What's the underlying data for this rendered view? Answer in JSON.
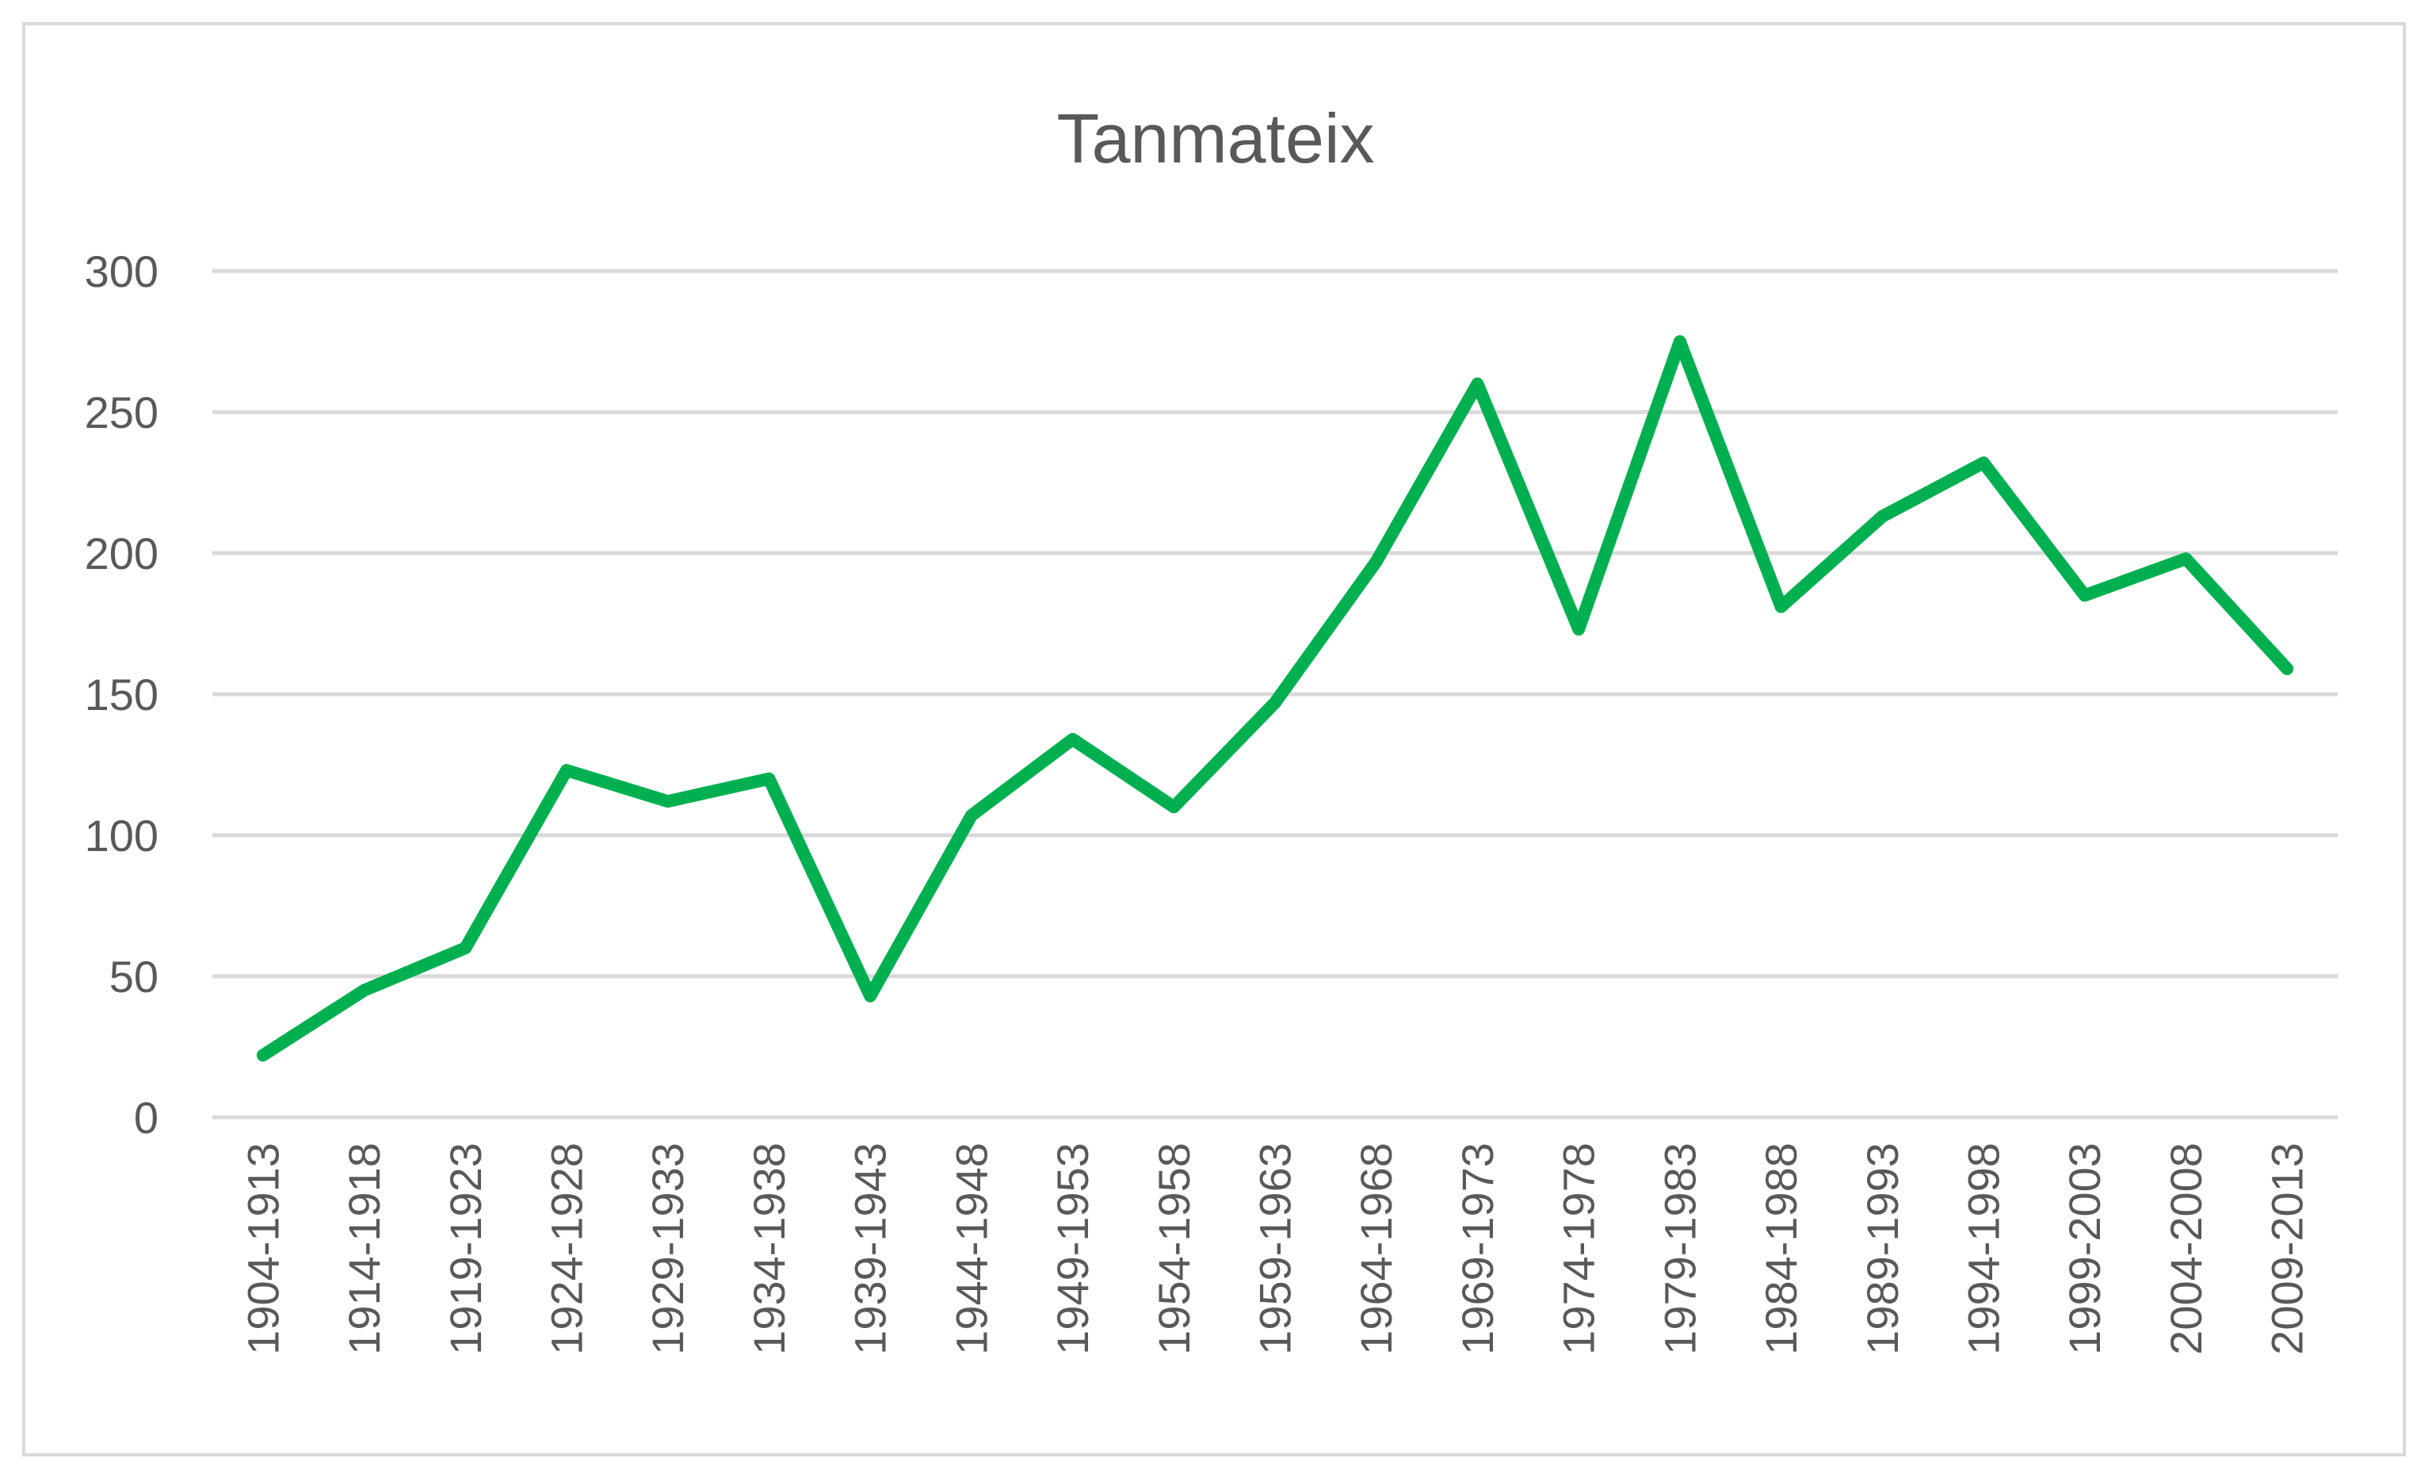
{
  "chart_data": {
    "type": "line",
    "title": "Tanmateix",
    "xlabel": "",
    "ylabel": "",
    "ylim": [
      0,
      300
    ],
    "yticks": [
      0,
      50,
      100,
      150,
      200,
      250,
      300
    ],
    "grid": true,
    "legend": "none",
    "categories": [
      "1904-1913",
      "1914-1918",
      "1919-1923",
      "1924-1928",
      "1929-1933",
      "1934-1938",
      "1939-1943",
      "1944-1948",
      "1949-1953",
      "1954-1958",
      "1959-1963",
      "1964-1968",
      "1969-1973",
      "1974-1978",
      "1979-1983",
      "1984-1988",
      "1989-1993",
      "1994-1998",
      "1999-2003",
      "2004-2008",
      "2009-2013"
    ],
    "series": [
      {
        "color": "#00b050",
        "values": [
          22,
          45,
          60,
          123,
          112,
          120,
          43,
          107,
          134,
          110,
          147,
          197,
          260,
          173,
          275,
          181,
          213,
          232,
          185,
          198,
          159
        ]
      }
    ]
  }
}
